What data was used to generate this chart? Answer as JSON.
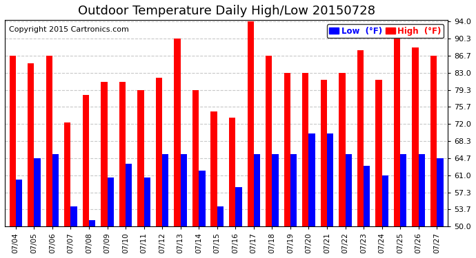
{
  "title": "Outdoor Temperature Daily High/Low 20150728",
  "copyright": "Copyright 2015 Cartronics.com",
  "legend_low": "Low  (°F)",
  "legend_high": "High  (°F)",
  "dates": [
    "07/04",
    "07/05",
    "07/06",
    "07/07",
    "07/08",
    "07/09",
    "07/10",
    "07/11",
    "07/12",
    "07/13",
    "07/14",
    "07/15",
    "07/16",
    "07/17",
    "07/18",
    "07/19",
    "07/20",
    "07/21",
    "07/22",
    "07/23",
    "07/24",
    "07/25",
    "07/26",
    "07/27"
  ],
  "highs": [
    86.7,
    85.0,
    86.7,
    72.3,
    78.3,
    81.0,
    81.0,
    79.3,
    82.0,
    90.3,
    79.3,
    74.7,
    73.4,
    94.0,
    86.7,
    83.0,
    83.0,
    81.5,
    83.0,
    87.8,
    81.5,
    90.3,
    88.5,
    86.7
  ],
  "lows": [
    60.1,
    64.7,
    65.5,
    54.3,
    51.3,
    60.5,
    63.5,
    60.5,
    65.5,
    65.5,
    62.0,
    54.3,
    58.5,
    65.5,
    65.5,
    65.5,
    70.0,
    70.0,
    65.5,
    63.0,
    61.0,
    65.5,
    65.5,
    64.7
  ],
  "ylim_min": 50.0,
  "ylim_max": 94.0,
  "yticks": [
    50.0,
    53.7,
    57.3,
    61.0,
    64.7,
    68.3,
    72.0,
    75.7,
    79.3,
    83.0,
    86.7,
    90.3,
    94.0
  ],
  "bar_color_high": "#ff0000",
  "bar_color_low": "#0000ff",
  "background_color": "#ffffff",
  "plot_bg_color": "#ffffff",
  "grid_color": "#c8c8c8",
  "title_fontsize": 13,
  "copyright_fontsize": 8,
  "bar_width": 0.35
}
